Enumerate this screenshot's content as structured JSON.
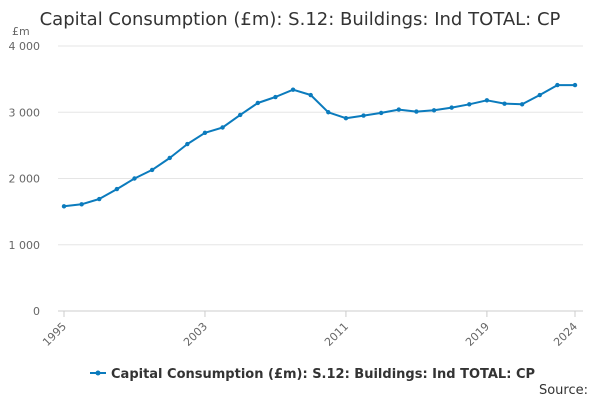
{
  "chart_data": {
    "type": "line",
    "title": "Capital Consumption (£m): S.12: Buildings: Ind TOTAL: CP",
    "ylabel": "£m",
    "xlabel": "",
    "ylim": [
      0,
      4000
    ],
    "xlim": [
      1995,
      2024
    ],
    "y_ticks": [
      0,
      1000,
      2000,
      3000,
      4000
    ],
    "y_tick_labels": [
      "0",
      "1 000",
      "2 000",
      "3 000",
      "4 000"
    ],
    "x_ticks": [
      1995,
      2003,
      2011,
      2019,
      2024
    ],
    "x_tick_labels": [
      "1995",
      "2003",
      "2011",
      "2019",
      "2024"
    ],
    "grid": true,
    "legend_position": "bottom-center",
    "series": [
      {
        "name": "Capital Consumption (£m): S.12: Buildings: Ind TOTAL: CP",
        "color": "#0b7bbd",
        "x": [
          1995,
          1996,
          1997,
          1998,
          1999,
          2000,
          2001,
          2002,
          2003,
          2004,
          2005,
          2006,
          2007,
          2008,
          2009,
          2010,
          2011,
          2012,
          2013,
          2014,
          2015,
          2016,
          2017,
          2018,
          2019,
          2020,
          2021,
          2022,
          2023,
          2024
        ],
        "values": [
          1580,
          1610,
          1690,
          1840,
          2000,
          2130,
          2310,
          2520,
          2690,
          2770,
          2960,
          3140,
          3230,
          3340,
          3260,
          3000,
          2910,
          2950,
          2990,
          3040,
          3010,
          3030,
          3070,
          3120,
          3180,
          3130,
          3120,
          3260,
          3410,
          3410
        ]
      }
    ],
    "source_label": "Source:"
  }
}
